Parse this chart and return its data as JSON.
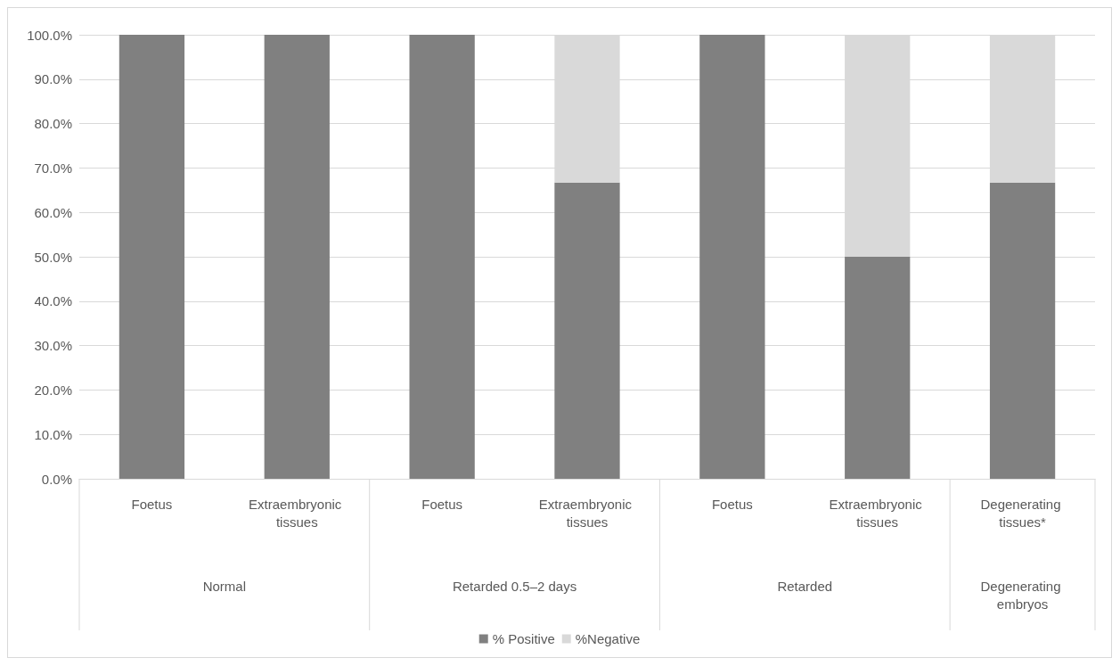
{
  "chart_data": {
    "type": "bar",
    "stacked": true,
    "categories": [
      "Foetus",
      "Extraembryonic tissues",
      "Foetus",
      "Extraembryonic tissues",
      "Foetus",
      "Extraembryonic tissues",
      "Degenerating tissues*"
    ],
    "series": [
      {
        "name": "% Positive",
        "color": "#808080",
        "values": [
          100,
          100,
          100,
          66.7,
          100,
          50,
          66.7
        ]
      },
      {
        "name": "%Negative",
        "color": "#d9d9d9",
        "values": [
          0,
          0,
          0,
          33.3,
          0,
          50,
          33.3
        ]
      }
    ],
    "annotations": [
      "Normal",
      "Retarded 0.5–2 days",
      "Retarded",
      "Degenerating embryos"
    ],
    "ylim": [
      0,
      100
    ],
    "yticks": [
      {
        "value": 0,
        "label": "0.0%"
      },
      {
        "value": 10,
        "label": "10.0%"
      },
      {
        "value": 20,
        "label": "20.0%"
      },
      {
        "value": 30,
        "label": "30.0%"
      },
      {
        "value": 40,
        "label": "40.0%"
      },
      {
        "value": 50,
        "label": "50.0%"
      },
      {
        "value": 60,
        "label": "60.0%"
      },
      {
        "value": 70,
        "label": "70.0%"
      },
      {
        "value": 80,
        "label": "80.0%"
      },
      {
        "value": 90,
        "label": "90.0%"
      },
      {
        "value": 100,
        "label": "100.0%"
      }
    ],
    "grid": "y",
    "legend": "bottom"
  }
}
